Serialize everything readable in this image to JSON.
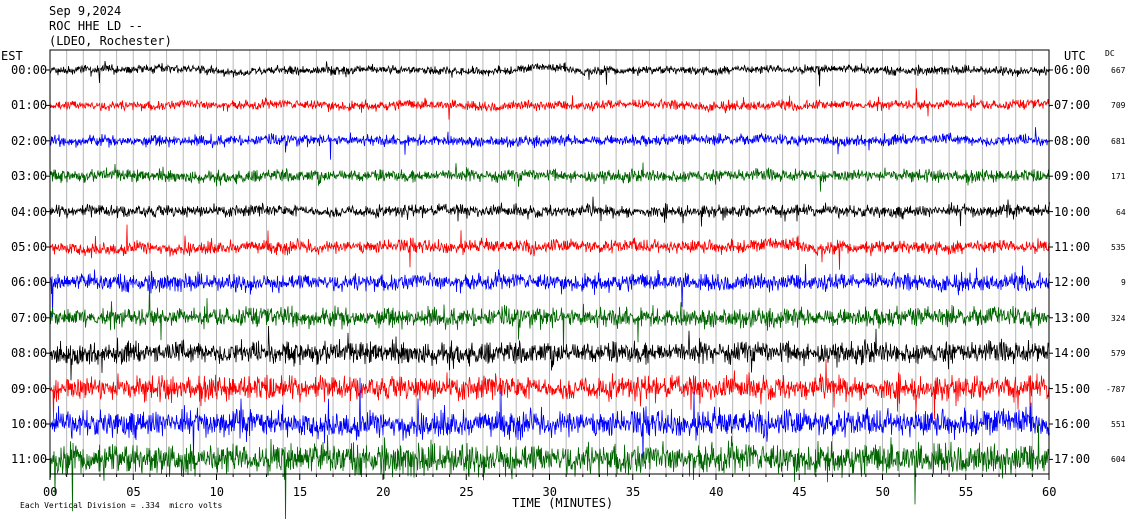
{
  "header": {
    "date": "Sep 9,2024",
    "station": "ROC HHE LD --",
    "location": "(LDEO, Rochester)"
  },
  "labels": {
    "left_zone": "EST",
    "right_zone": "UTC",
    "dc": "DC",
    "xlabel": "TIME (MINUTES)",
    "scale_note": "Each Vertical Division = .334  micro volts"
  },
  "chart_data": {
    "type": "line",
    "title": "ROC HHE LD --",
    "xlabel": "TIME (MINUTES)",
    "xlim": [
      0,
      60
    ],
    "x_ticks": [
      "00",
      "05",
      "10",
      "15",
      "20",
      "25",
      "30",
      "35",
      "40",
      "45",
      "50",
      "55",
      "60"
    ],
    "est_labels": [
      "00:00",
      "01:00",
      "02:00",
      "03:00",
      "04:00",
      "05:00",
      "06:00",
      "07:00",
      "08:00",
      "09:00",
      "10:00",
      "11:00"
    ],
    "utc_labels": [
      "06:00",
      "07:00",
      "08:00",
      "09:00",
      "10:00",
      "11:00",
      "12:00",
      "13:00",
      "14:00",
      "15:00",
      "16:00",
      "17:00"
    ],
    "dc_offsets": [
      "667",
      "709",
      "681",
      "171",
      "64",
      "535",
      "9",
      "324",
      "579",
      "-787",
      "551",
      "604"
    ],
    "trace_colors": [
      "#000000",
      "#ff0000",
      "#0000ff",
      "#006400"
    ],
    "grid": true,
    "vertical_grid_every_minutes": 1
  }
}
